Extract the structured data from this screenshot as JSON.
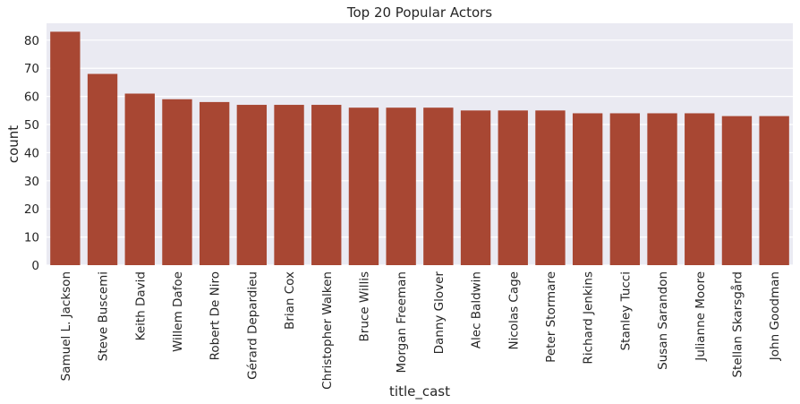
{
  "chart_data": {
    "type": "bar",
    "title": "Top 20 Popular Actors",
    "xlabel": "title_cast",
    "ylabel": "count",
    "ylim": [
      0,
      86
    ],
    "yticks": [
      0,
      10,
      20,
      30,
      40,
      50,
      60,
      70,
      80
    ],
    "grid": true,
    "bar_color": "#a84733",
    "background_color": "#eaeaf2",
    "categories": [
      "Samuel L. Jackson",
      "Steve Buscemi",
      "Keith David",
      "Willem Dafoe",
      "Robert De Niro",
      "Gérard Depardieu",
      "Brian Cox",
      "Christopher Walken",
      "Bruce Willis",
      "Morgan Freeman",
      "Danny Glover",
      "Alec Baldwin",
      "Nicolas Cage",
      "Peter Stormare",
      "Richard Jenkins",
      "Stanley Tucci",
      "Susan Sarandon",
      "Julianne Moore",
      "Stellan Skarsgård",
      "John Goodman"
    ],
    "values": [
      83,
      68,
      61,
      59,
      58,
      57,
      57,
      57,
      56,
      56,
      56,
      55,
      55,
      55,
      54,
      54,
      54,
      54,
      53,
      53
    ]
  }
}
